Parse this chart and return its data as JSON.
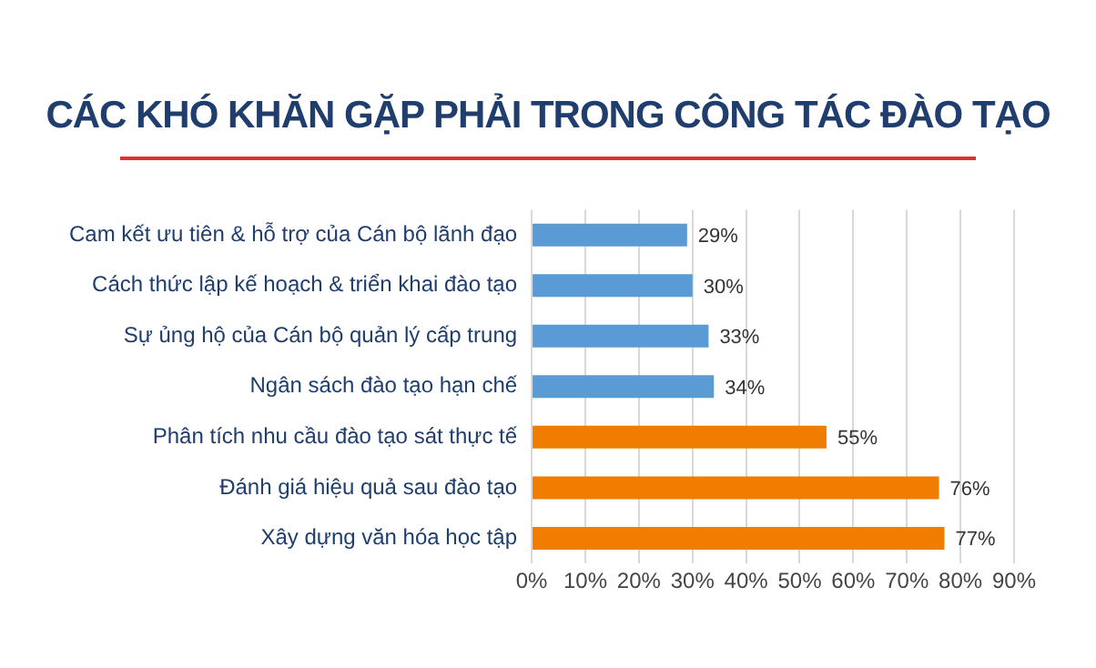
{
  "chart_data": {
    "type": "bar",
    "orientation": "horizontal",
    "title": "CÁC KHÓ KHĂN GẶP PHẢI TRONG CÔNG TÁC ĐÀO TẠO",
    "categories": [
      "Cam kết ưu tiên & hỗ trợ của Cán bộ lãnh đạo",
      "Cách thức lập kế hoạch & triển khai đào tạo",
      "Sự ủng hộ của Cán bộ quản lý cấp trung",
      "Ngân sách đào tạo hạn chế",
      "Phân tích nhu cầu đào tạo sát thực tế",
      "Đánh giá hiệu quả sau đào tạo",
      "Xây dựng văn hóa học tập"
    ],
    "values": [
      29,
      30,
      33,
      34,
      55,
      76,
      77
    ],
    "colors": [
      "#5b9bd5",
      "#5b9bd5",
      "#5b9bd5",
      "#5b9bd5",
      "#f07c00",
      "#f07c00",
      "#f07c00"
    ],
    "value_labels": [
      "29%",
      "30%",
      "33%",
      "34%",
      "55%",
      "76%",
      "77%"
    ],
    "xlim": [
      0,
      90
    ],
    "xticks": [
      {
        "value": 0,
        "label": "0%"
      },
      {
        "value": 10,
        "label": "10%"
      },
      {
        "value": 20,
        "label": "20%"
      },
      {
        "value": 30,
        "label": "30%"
      },
      {
        "value": 40,
        "label": "40%"
      },
      {
        "value": 50,
        "label": "50%"
      },
      {
        "value": 60,
        "label": "60%"
      },
      {
        "value": 70,
        "label": "70%"
      },
      {
        "value": 80,
        "label": "80%"
      },
      {
        "value": 90,
        "label": "90%"
      }
    ],
    "grid": "x",
    "legend": false
  }
}
